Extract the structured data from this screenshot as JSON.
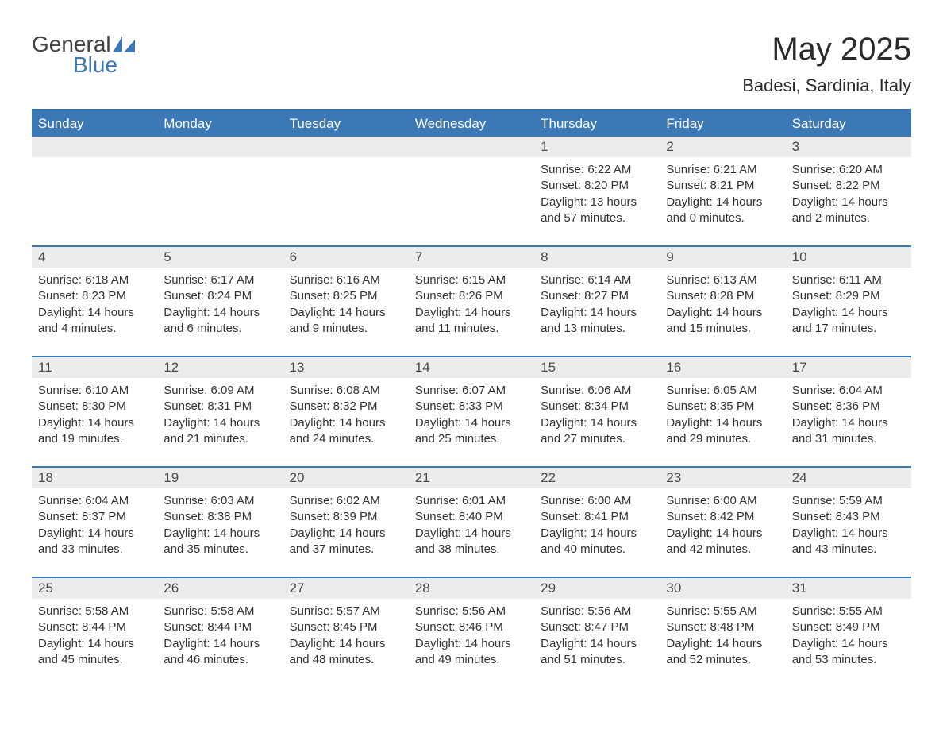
{
  "logo": {
    "text1": "General",
    "text2": "Blue",
    "icon_color": "#3b78b5",
    "text1_color": "#424242"
  },
  "title": "May 2025",
  "location": "Badesi, Sardinia, Italy",
  "colors": {
    "header_bg": "#3b78b5",
    "header_text": "#ffffff",
    "daynum_bg": "#ececec",
    "daynum_text": "#4a4a4a",
    "body_text": "#333333",
    "rule": "#3b78b5",
    "page_bg": "#ffffff"
  },
  "fonts": {
    "title_size": 40,
    "location_size": 22,
    "dow_size": 17,
    "daynum_size": 17,
    "body_size": 15
  },
  "days_of_week": [
    "Sunday",
    "Monday",
    "Tuesday",
    "Wednesday",
    "Thursday",
    "Friday",
    "Saturday"
  ],
  "weeks": [
    [
      null,
      null,
      null,
      null,
      {
        "n": "1",
        "sunrise": "Sunrise: 6:22 AM",
        "sunset": "Sunset: 8:20 PM",
        "daylight": "Daylight: 13 hours and 57 minutes."
      },
      {
        "n": "2",
        "sunrise": "Sunrise: 6:21 AM",
        "sunset": "Sunset: 8:21 PM",
        "daylight": "Daylight: 14 hours and 0 minutes."
      },
      {
        "n": "3",
        "sunrise": "Sunrise: 6:20 AM",
        "sunset": "Sunset: 8:22 PM",
        "daylight": "Daylight: 14 hours and 2 minutes."
      }
    ],
    [
      {
        "n": "4",
        "sunrise": "Sunrise: 6:18 AM",
        "sunset": "Sunset: 8:23 PM",
        "daylight": "Daylight: 14 hours and 4 minutes."
      },
      {
        "n": "5",
        "sunrise": "Sunrise: 6:17 AM",
        "sunset": "Sunset: 8:24 PM",
        "daylight": "Daylight: 14 hours and 6 minutes."
      },
      {
        "n": "6",
        "sunrise": "Sunrise: 6:16 AM",
        "sunset": "Sunset: 8:25 PM",
        "daylight": "Daylight: 14 hours and 9 minutes."
      },
      {
        "n": "7",
        "sunrise": "Sunrise: 6:15 AM",
        "sunset": "Sunset: 8:26 PM",
        "daylight": "Daylight: 14 hours and 11 minutes."
      },
      {
        "n": "8",
        "sunrise": "Sunrise: 6:14 AM",
        "sunset": "Sunset: 8:27 PM",
        "daylight": "Daylight: 14 hours and 13 minutes."
      },
      {
        "n": "9",
        "sunrise": "Sunrise: 6:13 AM",
        "sunset": "Sunset: 8:28 PM",
        "daylight": "Daylight: 14 hours and 15 minutes."
      },
      {
        "n": "10",
        "sunrise": "Sunrise: 6:11 AM",
        "sunset": "Sunset: 8:29 PM",
        "daylight": "Daylight: 14 hours and 17 minutes."
      }
    ],
    [
      {
        "n": "11",
        "sunrise": "Sunrise: 6:10 AM",
        "sunset": "Sunset: 8:30 PM",
        "daylight": "Daylight: 14 hours and 19 minutes."
      },
      {
        "n": "12",
        "sunrise": "Sunrise: 6:09 AM",
        "sunset": "Sunset: 8:31 PM",
        "daylight": "Daylight: 14 hours and 21 minutes."
      },
      {
        "n": "13",
        "sunrise": "Sunrise: 6:08 AM",
        "sunset": "Sunset: 8:32 PM",
        "daylight": "Daylight: 14 hours and 24 minutes."
      },
      {
        "n": "14",
        "sunrise": "Sunrise: 6:07 AM",
        "sunset": "Sunset: 8:33 PM",
        "daylight": "Daylight: 14 hours and 25 minutes."
      },
      {
        "n": "15",
        "sunrise": "Sunrise: 6:06 AM",
        "sunset": "Sunset: 8:34 PM",
        "daylight": "Daylight: 14 hours and 27 minutes."
      },
      {
        "n": "16",
        "sunrise": "Sunrise: 6:05 AM",
        "sunset": "Sunset: 8:35 PM",
        "daylight": "Daylight: 14 hours and 29 minutes."
      },
      {
        "n": "17",
        "sunrise": "Sunrise: 6:04 AM",
        "sunset": "Sunset: 8:36 PM",
        "daylight": "Daylight: 14 hours and 31 minutes."
      }
    ],
    [
      {
        "n": "18",
        "sunrise": "Sunrise: 6:04 AM",
        "sunset": "Sunset: 8:37 PM",
        "daylight": "Daylight: 14 hours and 33 minutes."
      },
      {
        "n": "19",
        "sunrise": "Sunrise: 6:03 AM",
        "sunset": "Sunset: 8:38 PM",
        "daylight": "Daylight: 14 hours and 35 minutes."
      },
      {
        "n": "20",
        "sunrise": "Sunrise: 6:02 AM",
        "sunset": "Sunset: 8:39 PM",
        "daylight": "Daylight: 14 hours and 37 minutes."
      },
      {
        "n": "21",
        "sunrise": "Sunrise: 6:01 AM",
        "sunset": "Sunset: 8:40 PM",
        "daylight": "Daylight: 14 hours and 38 minutes."
      },
      {
        "n": "22",
        "sunrise": "Sunrise: 6:00 AM",
        "sunset": "Sunset: 8:41 PM",
        "daylight": "Daylight: 14 hours and 40 minutes."
      },
      {
        "n": "23",
        "sunrise": "Sunrise: 6:00 AM",
        "sunset": "Sunset: 8:42 PM",
        "daylight": "Daylight: 14 hours and 42 minutes."
      },
      {
        "n": "24",
        "sunrise": "Sunrise: 5:59 AM",
        "sunset": "Sunset: 8:43 PM",
        "daylight": "Daylight: 14 hours and 43 minutes."
      }
    ],
    [
      {
        "n": "25",
        "sunrise": "Sunrise: 5:58 AM",
        "sunset": "Sunset: 8:44 PM",
        "daylight": "Daylight: 14 hours and 45 minutes."
      },
      {
        "n": "26",
        "sunrise": "Sunrise: 5:58 AM",
        "sunset": "Sunset: 8:44 PM",
        "daylight": "Daylight: 14 hours and 46 minutes."
      },
      {
        "n": "27",
        "sunrise": "Sunrise: 5:57 AM",
        "sunset": "Sunset: 8:45 PM",
        "daylight": "Daylight: 14 hours and 48 minutes."
      },
      {
        "n": "28",
        "sunrise": "Sunrise: 5:56 AM",
        "sunset": "Sunset: 8:46 PM",
        "daylight": "Daylight: 14 hours and 49 minutes."
      },
      {
        "n": "29",
        "sunrise": "Sunrise: 5:56 AM",
        "sunset": "Sunset: 8:47 PM",
        "daylight": "Daylight: 14 hours and 51 minutes."
      },
      {
        "n": "30",
        "sunrise": "Sunrise: 5:55 AM",
        "sunset": "Sunset: 8:48 PM",
        "daylight": "Daylight: 14 hours and 52 minutes."
      },
      {
        "n": "31",
        "sunrise": "Sunrise: 5:55 AM",
        "sunset": "Sunset: 8:49 PM",
        "daylight": "Daylight: 14 hours and 53 minutes."
      }
    ]
  ]
}
